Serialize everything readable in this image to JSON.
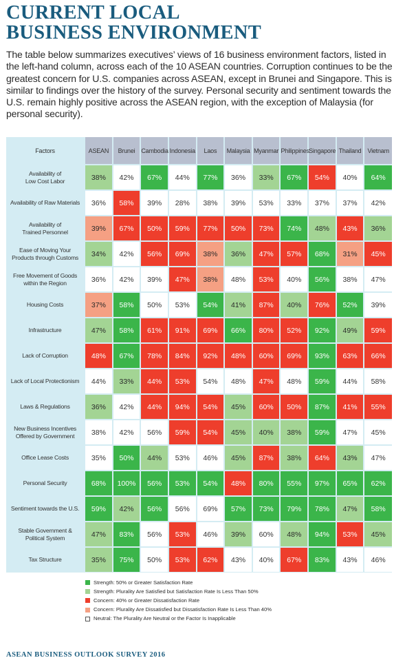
{
  "title": {
    "line1": "CURRENT LOCAL",
    "line2": "BUSINESS ENVIRONMENT"
  },
  "intro": "The table below summarizes executives’ views of 16 business environment factors, listed in the left-hand column, across each of the 10 ASEAN countries. Corruption continues to be the greatest concern for U.S. companies across ASEAN, except in Brunei and Singapore. This is similar to findings over the history of the survey. Personal security and sentiment towards the U.S. remain highly positive across the ASEAN region, with the exception of Malaysia (for personal security).",
  "table": {
    "factor_header": "Factors",
    "columns": [
      "ASEAN",
      "Brunei",
      "Cambodia",
      "Indonesia",
      "Laos",
      "Malaysia",
      "Myanmar",
      "Philippines",
      "Singapore",
      "Thailand",
      "Vietnam"
    ],
    "rows": [
      {
        "factor": [
          "Availability of",
          "Low Cost Labor"
        ],
        "values": [
          "38%",
          "42%",
          "67%",
          "44%",
          "77%",
          "36%",
          "33%",
          "67%",
          "54%",
          "40%",
          "64%"
        ],
        "ratings": [
          "p",
          "n",
          "s",
          "n",
          "s",
          "n",
          "p",
          "s",
          "c",
          "n",
          "s"
        ]
      },
      {
        "factor": [
          "Availability of Raw Materials"
        ],
        "values": [
          "36%",
          "58%",
          "39%",
          "28%",
          "38%",
          "39%",
          "53%",
          "33%",
          "37%",
          "37%",
          "42%"
        ],
        "ratings": [
          "n",
          "c",
          "n",
          "n",
          "n",
          "n",
          "n",
          "n",
          "n",
          "n",
          "n"
        ]
      },
      {
        "factor": [
          "Availability of",
          "Trained Personnel"
        ],
        "values": [
          "39%",
          "67%",
          "50%",
          "59%",
          "77%",
          "50%",
          "73%",
          "74%",
          "48%",
          "43%",
          "36%"
        ],
        "ratings": [
          "d",
          "c",
          "c",
          "c",
          "c",
          "c",
          "c",
          "s",
          "p",
          "c",
          "p"
        ]
      },
      {
        "factor": [
          "Ease of Moving Your",
          "Products through Customs"
        ],
        "values": [
          "34%",
          "42%",
          "56%",
          "69%",
          "38%",
          "36%",
          "47%",
          "57%",
          "68%",
          "31%",
          "45%"
        ],
        "ratings": [
          "p",
          "n",
          "c",
          "c",
          "d",
          "p",
          "c",
          "c",
          "s",
          "d",
          "c"
        ]
      },
      {
        "factor": [
          "Free Movement of Goods",
          "within the Region"
        ],
        "values": [
          "36%",
          "42%",
          "39%",
          "47%",
          "38%",
          "48%",
          "53%",
          "40%",
          "56%",
          "38%",
          "47%"
        ],
        "ratings": [
          "n",
          "n",
          "n",
          "c",
          "d",
          "n",
          "c",
          "n",
          "s",
          "n",
          "n"
        ]
      },
      {
        "factor": [
          "Housing Costs"
        ],
        "values": [
          "37%",
          "58%",
          "50%",
          "53%",
          "54%",
          "41%",
          "87%",
          "40%",
          "76%",
          "52%",
          "39%"
        ],
        "ratings": [
          "d",
          "s",
          "n",
          "n",
          "s",
          "p",
          "c",
          "p",
          "c",
          "s",
          "n"
        ]
      },
      {
        "factor": [
          "Infrastructure"
        ],
        "values": [
          "47%",
          "58%",
          "61%",
          "91%",
          "69%",
          "66%",
          "80%",
          "52%",
          "92%",
          "49%",
          "59%"
        ],
        "ratings": [
          "p",
          "s",
          "c",
          "c",
          "c",
          "s",
          "c",
          "c",
          "s",
          "p",
          "c"
        ]
      },
      {
        "factor": [
          "Lack of Corruption"
        ],
        "values": [
          "48%",
          "67%",
          "78%",
          "84%",
          "92%",
          "48%",
          "60%",
          "69%",
          "93%",
          "63%",
          "66%"
        ],
        "ratings": [
          "c",
          "s",
          "c",
          "c",
          "c",
          "c",
          "c",
          "c",
          "s",
          "c",
          "c"
        ]
      },
      {
        "factor": [
          "Lack of Local Protectionism"
        ],
        "values": [
          "44%",
          "33%",
          "44%",
          "53%",
          "54%",
          "48%",
          "47%",
          "48%",
          "59%",
          "44%",
          "58%"
        ],
        "ratings": [
          "n",
          "p",
          "c",
          "c",
          "n",
          "n",
          "c",
          "n",
          "s",
          "n",
          "n"
        ]
      },
      {
        "factor": [
          "Laws & Regulations"
        ],
        "values": [
          "36%",
          "42%",
          "44%",
          "94%",
          "54%",
          "45%",
          "60%",
          "50%",
          "87%",
          "41%",
          "55%"
        ],
        "ratings": [
          "p",
          "n",
          "c",
          "c",
          "c",
          "p",
          "c",
          "c",
          "s",
          "c",
          "c"
        ]
      },
      {
        "factor": [
          "New Business Incentives",
          "Offered by Government"
        ],
        "values": [
          "38%",
          "42%",
          "56%",
          "59%",
          "54%",
          "45%",
          "40%",
          "38%",
          "59%",
          "47%",
          "45%"
        ],
        "ratings": [
          "n",
          "n",
          "n",
          "c",
          "c",
          "p",
          "p",
          "p",
          "s",
          "n",
          "n"
        ]
      },
      {
        "factor": [
          "Office Lease Costs"
        ],
        "values": [
          "35%",
          "50%",
          "44%",
          "53%",
          "46%",
          "45%",
          "87%",
          "38%",
          "64%",
          "43%",
          "47%"
        ],
        "ratings": [
          "n",
          "s",
          "p",
          "n",
          "n",
          "p",
          "c",
          "p",
          "c",
          "p",
          "n"
        ]
      },
      {
        "factor": [
          "Personal Security"
        ],
        "values": [
          "68%",
          "100%",
          "56%",
          "53%",
          "54%",
          "48%",
          "80%",
          "55%",
          "97%",
          "65%",
          "62%"
        ],
        "ratings": [
          "s",
          "s",
          "s",
          "s",
          "s",
          "c",
          "s",
          "s",
          "s",
          "s",
          "s"
        ]
      },
      {
        "factor": [
          "Sentiment towards the U.S."
        ],
        "values": [
          "59%",
          "42%",
          "56%",
          "56%",
          "69%",
          "57%",
          "73%",
          "79%",
          "78%",
          "47%",
          "58%"
        ],
        "ratings": [
          "s",
          "p",
          "s",
          "n",
          "n",
          "s",
          "s",
          "s",
          "s",
          "p",
          "s"
        ]
      },
      {
        "factor": [
          "Stable Government &",
          "Political System"
        ],
        "values": [
          "47%",
          "83%",
          "56%",
          "53%",
          "46%",
          "39%",
          "60%",
          "48%",
          "94%",
          "53%",
          "45%"
        ],
        "ratings": [
          "p",
          "s",
          "n",
          "c",
          "n",
          "p",
          "n",
          "p",
          "s",
          "c",
          "p"
        ]
      },
      {
        "factor": [
          "Tax Structure"
        ],
        "values": [
          "35%",
          "75%",
          "50%",
          "53%",
          "62%",
          "43%",
          "40%",
          "67%",
          "83%",
          "43%",
          "46%"
        ],
        "ratings": [
          "p",
          "s",
          "n",
          "c",
          "c",
          "n",
          "n",
          "c",
          "s",
          "n",
          "n"
        ]
      }
    ]
  },
  "legend": [
    {
      "key": "s",
      "label": "Strength: 50% or Greater Satisfaction Rate"
    },
    {
      "key": "p",
      "label": "Strength: Plurality Are Satisfied but Satisfaction Rate Is Less Than 50%"
    },
    {
      "key": "c",
      "label": "Concern: 40% or Greater Dissatisfaction Rate"
    },
    {
      "key": "d",
      "label": "Concern: Plurality Are Dissatisfied but Dissatisfaction Rate Is Less Than 40%"
    },
    {
      "key": "n",
      "label": "Neutral:  The Plurality Are Neutral or the Factor Is Inapplicable"
    }
  ],
  "colors": {
    "s": "#3bb54a",
    "p": "#a3d494",
    "c": "#ee3e2c",
    "d": "#f5a083",
    "n": "#ffffff",
    "title": "#1a5c7e",
    "panel": "#d4ecf3",
    "header": "#b8bfcf"
  },
  "footer": "ASEAN BUSINESS OUTLOOK SURVEY 2016"
}
